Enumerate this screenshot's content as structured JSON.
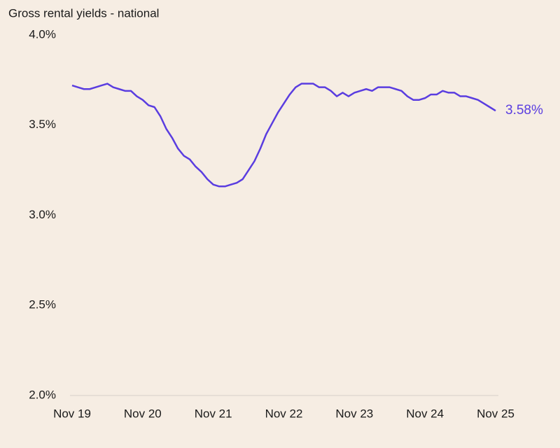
{
  "chart_data": {
    "type": "line",
    "title": "Gross rental yields - national",
    "categories": [
      "Nov 19",
      null,
      null,
      null,
      null,
      null,
      null,
      null,
      null,
      null,
      null,
      null,
      "Nov 20",
      null,
      null,
      null,
      null,
      null,
      null,
      null,
      null,
      null,
      null,
      null,
      "Nov 21",
      null,
      null,
      null,
      null,
      null,
      null,
      null,
      null,
      null,
      null,
      null,
      "Nov 22",
      null,
      null,
      null,
      null,
      null,
      null,
      null,
      null,
      null,
      null,
      null,
      "Nov 23",
      null,
      null,
      null,
      null,
      null,
      null,
      null,
      null,
      null,
      null,
      null,
      "Nov 24",
      null,
      null,
      null,
      null,
      null,
      null,
      null,
      null,
      null,
      null,
      null,
      "Nov 25"
    ],
    "series": [
      {
        "color": "#5a3de0",
        "values": [
          3.72,
          3.71,
          3.7,
          3.7,
          3.71,
          3.72,
          3.73,
          3.71,
          3.7,
          3.69,
          3.69,
          3.66,
          3.64,
          3.61,
          3.6,
          3.55,
          3.48,
          3.43,
          3.37,
          3.33,
          3.31,
          3.27,
          3.24,
          3.2,
          3.17,
          3.16,
          3.16,
          3.17,
          3.18,
          3.2,
          3.25,
          3.3,
          3.37,
          3.45,
          3.51,
          3.57,
          3.62,
          3.67,
          3.71,
          3.73,
          3.73,
          3.73,
          3.71,
          3.71,
          3.69,
          3.66,
          3.68,
          3.66,
          3.68,
          3.69,
          3.7,
          3.69,
          3.71,
          3.71,
          3.71,
          3.7,
          3.69,
          3.66,
          3.64,
          3.64,
          3.65,
          3.67,
          3.67,
          3.69,
          3.68,
          3.68,
          3.66,
          3.66,
          3.65,
          3.64,
          3.62,
          3.6,
          3.58
        ],
        "value_labels": [
          null,
          null,
          null,
          null,
          null,
          null,
          null,
          null,
          null,
          null,
          null,
          null,
          null,
          null,
          null,
          null,
          null,
          null,
          null,
          null,
          null,
          null,
          null,
          null,
          null,
          null,
          null,
          null,
          null,
          null,
          null,
          null,
          null,
          null,
          null,
          null,
          null,
          null,
          null,
          null,
          null,
          null,
          null,
          null,
          null,
          null,
          null,
          null,
          null,
          null,
          null,
          null,
          null,
          null,
          null,
          null,
          null,
          null,
          null,
          null,
          null,
          null,
          null,
          null,
          null,
          null,
          null,
          null,
          null,
          null,
          null,
          null,
          "3.58%"
        ]
      }
    ],
    "ylim": [
      2.0,
      4.0
    ],
    "yticks": [
      {
        "value": 2.0,
        "label": "2.0%"
      },
      {
        "value": 2.5,
        "label": "2.5%"
      },
      {
        "value": 3.0,
        "label": "3.0%"
      },
      {
        "value": 3.5,
        "label": "3.5%"
      },
      {
        "value": 4.0,
        "label": "4.0%"
      }
    ],
    "grid": false
  }
}
